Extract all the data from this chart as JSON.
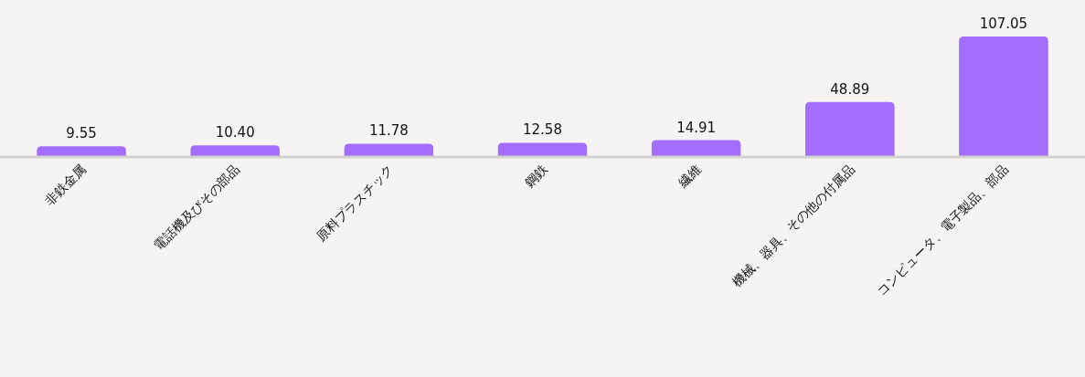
{
  "chart_data": {
    "type": "bar",
    "categories": [
      "非鉄金属",
      "電話機及びその部品",
      "原料プラスチック",
      "鋼鉄",
      "繊維",
      "機械、器具、その他の付属品",
      "コンピュータ、電子製品、部品"
    ],
    "values": [
      9.55,
      10.4,
      11.78,
      12.58,
      14.91,
      48.89,
      107.05
    ],
    "color": "#a36efc",
    "value_labels": [
      "9.55",
      "10.40",
      "11.78",
      "12.58",
      "14.91",
      "48.89",
      "107.05"
    ]
  }
}
